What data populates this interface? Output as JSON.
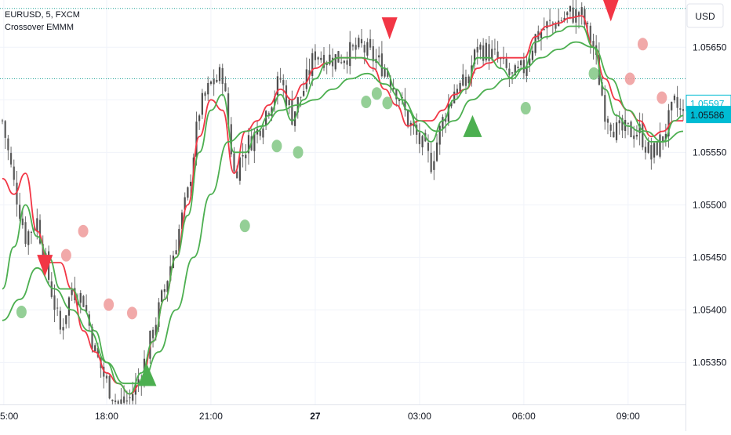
{
  "header": {
    "symbol_line": "EURUSD, 5, FXCM",
    "indicator_name": "Crossover EMMM"
  },
  "currency_label": "USD",
  "chart_data": {
    "type": "candlestick",
    "symbol": "EURUSD",
    "interval": "5",
    "ylim": [
      1.0531,
      1.05695
    ],
    "y_ticks": [
      "1.05650",
      "1.05600",
      "1.05550",
      "1.05500",
      "1.05450",
      "1.05400",
      "1.05350"
    ],
    "y_tick_values": [
      1.0565,
      1.056,
      1.0555,
      1.055,
      1.0545,
      1.054,
      1.0535
    ],
    "x_ticks": [
      {
        "label": "5:00",
        "t": 0.5,
        "bold": false
      },
      {
        "label": "18:00",
        "t": 36,
        "bold": false
      },
      {
        "label": "21:00",
        "t": 72,
        "bold": false
      },
      {
        "label": "27",
        "t": 108,
        "bold": true
      },
      {
        "label": "03:00",
        "t": 144,
        "bold": false
      },
      {
        "label": "06:00",
        "t": 180,
        "bold": false
      },
      {
        "label": "09:00",
        "t": 216,
        "bold": false
      }
    ],
    "x_range": [
      0,
      235
    ],
    "price_labels": {
      "alt_price": "1.05597",
      "last_price": "1.05586",
      "alt_price_value": 1.05597,
      "last_price_value": 1.05586
    },
    "dotted_levels": [
      1.05687,
      1.0562
    ],
    "close_anchors": [
      [
        0,
        1.0558
      ],
      [
        4,
        1.0552
      ],
      [
        8,
        1.0547
      ],
      [
        12,
        1.05485
      ],
      [
        16,
        1.0543
      ],
      [
        20,
        1.0538
      ],
      [
        24,
        1.0542
      ],
      [
        28,
        1.0541
      ],
      [
        32,
        1.0536
      ],
      [
        36,
        1.0533
      ],
      [
        40,
        1.0531
      ],
      [
        44,
        1.05315
      ],
      [
        48,
        1.0534
      ],
      [
        52,
        1.0538
      ],
      [
        56,
        1.0542
      ],
      [
        60,
        1.05465
      ],
      [
        64,
        1.0551
      ],
      [
        68,
        1.0559
      ],
      [
        72,
        1.05615
      ],
      [
        76,
        1.05625
      ],
      [
        80,
        1.0553
      ],
      [
        84,
        1.05555
      ],
      [
        88,
        1.0557
      ],
      [
        92,
        1.05595
      ],
      [
        96,
        1.0562
      ],
      [
        100,
        1.05585
      ],
      [
        104,
        1.0561
      ],
      [
        108,
        1.05645
      ],
      [
        112,
        1.0564
      ],
      [
        116,
        1.0564
      ],
      [
        120,
        1.05645
      ],
      [
        124,
        1.0565
      ],
      [
        128,
        1.0564
      ],
      [
        132,
        1.0563
      ],
      [
        136,
        1.0561
      ],
      [
        140,
        1.0558
      ],
      [
        144,
        1.0556
      ],
      [
        148,
        1.0554
      ],
      [
        152,
        1.0558
      ],
      [
        156,
        1.0561
      ],
      [
        160,
        1.05615
      ],
      [
        164,
        1.0565
      ],
      [
        168,
        1.05645
      ],
      [
        172,
        1.05635
      ],
      [
        176,
        1.0562
      ],
      [
        180,
        1.0563
      ],
      [
        184,
        1.0566
      ],
      [
        188,
        1.0567
      ],
      [
        192,
        1.05675
      ],
      [
        196,
        1.05682
      ],
      [
        200,
        1.0568
      ],
      [
        204,
        1.0565
      ],
      [
        208,
        1.0559
      ],
      [
        212,
        1.0557
      ],
      [
        216,
        1.0557
      ],
      [
        220,
        1.0557
      ],
      [
        224,
        1.05545
      ],
      [
        228,
        1.05565
      ],
      [
        232,
        1.05595
      ],
      [
        235,
        1.05586
      ]
    ],
    "series": [
      {
        "name": "",
        "role": "fast-ema",
        "color": "#f23645",
        "points": [
          [
            0,
            1.05525
          ],
          [
            4,
            1.0551
          ],
          [
            8,
            1.0553
          ],
          [
            12,
            1.05475
          ],
          [
            16,
            1.05445
          ],
          [
            20,
            1.05445
          ],
          [
            24,
            1.0542
          ],
          [
            28,
            1.0538
          ],
          [
            32,
            1.0536
          ],
          [
            36,
            1.0534
          ],
          [
            40,
            1.0533
          ],
          [
            44,
            1.0532
          ],
          [
            48,
            1.0533
          ],
          [
            52,
            1.0537
          ],
          [
            56,
            1.0541
          ],
          [
            60,
            1.0545
          ],
          [
            64,
            1.055
          ],
          [
            68,
            1.05565
          ],
          [
            72,
            1.056
          ],
          [
            76,
            1.0559
          ],
          [
            80,
            1.0553
          ],
          [
            84,
            1.0557
          ],
          [
            88,
            1.0558
          ],
          [
            92,
            1.05595
          ],
          [
            96,
            1.0561
          ],
          [
            100,
            1.056
          ],
          [
            104,
            1.05615
          ],
          [
            108,
            1.0563
          ],
          [
            112,
            1.05635
          ],
          [
            116,
            1.0564
          ],
          [
            120,
            1.0564
          ],
          [
            124,
            1.0564
          ],
          [
            128,
            1.0563
          ],
          [
            132,
            1.0561
          ],
          [
            136,
            1.05595
          ],
          [
            140,
            1.05575
          ],
          [
            144,
            1.0558
          ],
          [
            148,
            1.0558
          ],
          [
            152,
            1.0559
          ],
          [
            156,
            1.05605
          ],
          [
            160,
            1.0561
          ],
          [
            164,
            1.0563
          ],
          [
            168,
            1.05635
          ],
          [
            172,
            1.0564
          ],
          [
            176,
            1.0564
          ],
          [
            180,
            1.0564
          ],
          [
            184,
            1.0566
          ],
          [
            188,
            1.0567
          ],
          [
            192,
            1.05673
          ],
          [
            196,
            1.05678
          ],
          [
            200,
            1.0568
          ],
          [
            204,
            1.0565
          ],
          [
            208,
            1.0562
          ],
          [
            212,
            1.056
          ],
          [
            216,
            1.0559
          ],
          [
            220,
            1.0558
          ],
          [
            224,
            1.05565
          ],
          [
            228,
            1.0557
          ],
          [
            232,
            1.0558
          ],
          [
            235,
            1.0558
          ]
        ]
      },
      {
        "name": "",
        "role": "signal-ema",
        "color": "#4caf50",
        "points": [
          [
            0,
            1.0542
          ],
          [
            4,
            1.0546
          ],
          [
            8,
            1.055
          ],
          [
            12,
            1.0547
          ],
          [
            16,
            1.0545
          ],
          [
            20,
            1.0542
          ],
          [
            24,
            1.0542
          ],
          [
            28,
            1.054
          ],
          [
            32,
            1.0538
          ],
          [
            36,
            1.0535
          ],
          [
            40,
            1.0533
          ],
          [
            44,
            1.0532
          ],
          [
            48,
            1.0534
          ],
          [
            52,
            1.0537
          ],
          [
            56,
            1.0541
          ],
          [
            60,
            1.0545
          ],
          [
            64,
            1.0549
          ],
          [
            68,
            1.0555
          ],
          [
            72,
            1.0559
          ],
          [
            76,
            1.05605
          ],
          [
            80,
            1.0555
          ],
          [
            84,
            1.0555
          ],
          [
            88,
            1.0557
          ],
          [
            92,
            1.05585
          ],
          [
            96,
            1.05605
          ],
          [
            100,
            1.0558
          ],
          [
            104,
            1.056
          ],
          [
            108,
            1.0562
          ],
          [
            112,
            1.05635
          ],
          [
            116,
            1.0564
          ],
          [
            120,
            1.0564
          ],
          [
            124,
            1.0564
          ],
          [
            128,
            1.05638
          ],
          [
            132,
            1.0563
          ],
          [
            136,
            1.0561
          ],
          [
            140,
            1.0559
          ],
          [
            144,
            1.0557
          ],
          [
            148,
            1.0556
          ],
          [
            152,
            1.0558
          ],
          [
            156,
            1.056
          ],
          [
            160,
            1.0561
          ],
          [
            164,
            1.0564
          ],
          [
            168,
            1.0564
          ],
          [
            172,
            1.0563
          ],
          [
            176,
            1.0562
          ],
          [
            180,
            1.0563
          ],
          [
            184,
            1.05655
          ],
          [
            188,
            1.0566
          ],
          [
            192,
            1.05665
          ],
          [
            196,
            1.0567
          ],
          [
            200,
            1.0567
          ],
          [
            204,
            1.0565
          ],
          [
            208,
            1.0561
          ],
          [
            212,
            1.05585
          ],
          [
            216,
            1.05575
          ],
          [
            220,
            1.0557
          ],
          [
            224,
            1.0556
          ],
          [
            228,
            1.0556
          ],
          [
            232,
            1.0558
          ],
          [
            235,
            1.05585
          ]
        ]
      },
      {
        "name": "",
        "role": "slow-ema",
        "color": "#4caf50",
        "points": [
          [
            0,
            1.0539
          ],
          [
            6,
            1.0541
          ],
          [
            12,
            1.0544
          ],
          [
            18,
            1.0542
          ],
          [
            24,
            1.054
          ],
          [
            30,
            1.0538
          ],
          [
            36,
            1.0535
          ],
          [
            42,
            1.0533
          ],
          [
            48,
            1.0533
          ],
          [
            54,
            1.0536
          ],
          [
            60,
            1.054
          ],
          [
            66,
            1.0545
          ],
          [
            72,
            1.0551
          ],
          [
            78,
            1.0556
          ],
          [
            84,
            1.0557
          ],
          [
            90,
            1.05575
          ],
          [
            96,
            1.0559
          ],
          [
            102,
            1.05595
          ],
          [
            108,
            1.056
          ],
          [
            114,
            1.0561
          ],
          [
            120,
            1.0562
          ],
          [
            126,
            1.05625
          ],
          [
            132,
            1.05615
          ],
          [
            138,
            1.056
          ],
          [
            144,
            1.0558
          ],
          [
            150,
            1.0557
          ],
          [
            156,
            1.0558
          ],
          [
            162,
            1.056
          ],
          [
            168,
            1.0561
          ],
          [
            174,
            1.0562
          ],
          [
            180,
            1.0563
          ],
          [
            186,
            1.0564
          ],
          [
            192,
            1.05648
          ],
          [
            198,
            1.05655
          ],
          [
            204,
            1.0565
          ],
          [
            210,
            1.0562
          ],
          [
            216,
            1.0559
          ],
          [
            222,
            1.0557
          ],
          [
            228,
            1.0556
          ],
          [
            235,
            1.0557
          ]
        ]
      }
    ],
    "signals": [
      {
        "type": "sell",
        "t": 20,
        "y": 1.05442,
        "color": "#f23645"
      },
      {
        "type": "buy",
        "t": 68,
        "y": 1.05338,
        "color": "#4caf50"
      },
      {
        "type": "sell",
        "t": 182,
        "y": 1.05668,
        "color": "#f23645"
      },
      {
        "type": "buy",
        "t": 221,
        "y": 1.05575,
        "color": "#4caf50"
      },
      {
        "type": "sell",
        "t": 286,
        "y": 1.05685,
        "color": "#f23645"
      }
    ],
    "dots": [
      {
        "t": 9,
        "y": 1.05398,
        "color": "#81c784"
      },
      {
        "t": 30,
        "y": 1.05452,
        "color": "#ef9a9a"
      },
      {
        "t": 38,
        "y": 1.05475,
        "color": "#ef9a9a"
      },
      {
        "t": 50,
        "y": 1.05405,
        "color": "#ef9a9a"
      },
      {
        "t": 61,
        "y": 1.05397,
        "color": "#ef9a9a"
      },
      {
        "t": 114,
        "y": 1.0548,
        "color": "#81c784"
      },
      {
        "t": 129,
        "y": 1.05556,
        "color": "#81c784"
      },
      {
        "t": 139,
        "y": 1.0555,
        "color": "#81c784"
      },
      {
        "t": 171,
        "y": 1.05598,
        "color": "#81c784"
      },
      {
        "t": 176,
        "y": 1.05606,
        "color": "#81c784"
      },
      {
        "t": 181,
        "y": 1.05597,
        "color": "#81c784"
      },
      {
        "t": 246,
        "y": 1.05592,
        "color": "#81c784"
      },
      {
        "t": 278,
        "y": 1.05625,
        "color": "#81c784"
      },
      {
        "t": 301,
        "y": 1.05653,
        "color": "#ef9a9a"
      },
      {
        "t": 295,
        "y": 1.0562,
        "color": "#ef9a9a"
      },
      {
        "t": 310,
        "y": 1.05602,
        "color": "#ef9a9a"
      }
    ]
  },
  "colors": {
    "up_candle": "#4d4d4d",
    "down_candle": "#5a5a5a",
    "grid": "#f0f3fa",
    "axis_text": "#131722",
    "last_price_bg": "#26a69a",
    "alt_price_border": "#00bcd4",
    "last_price_badge": "#00bcd4",
    "dotted_line": "#26a69a",
    "bull": "#4caf50",
    "bear": "#f23645"
  }
}
